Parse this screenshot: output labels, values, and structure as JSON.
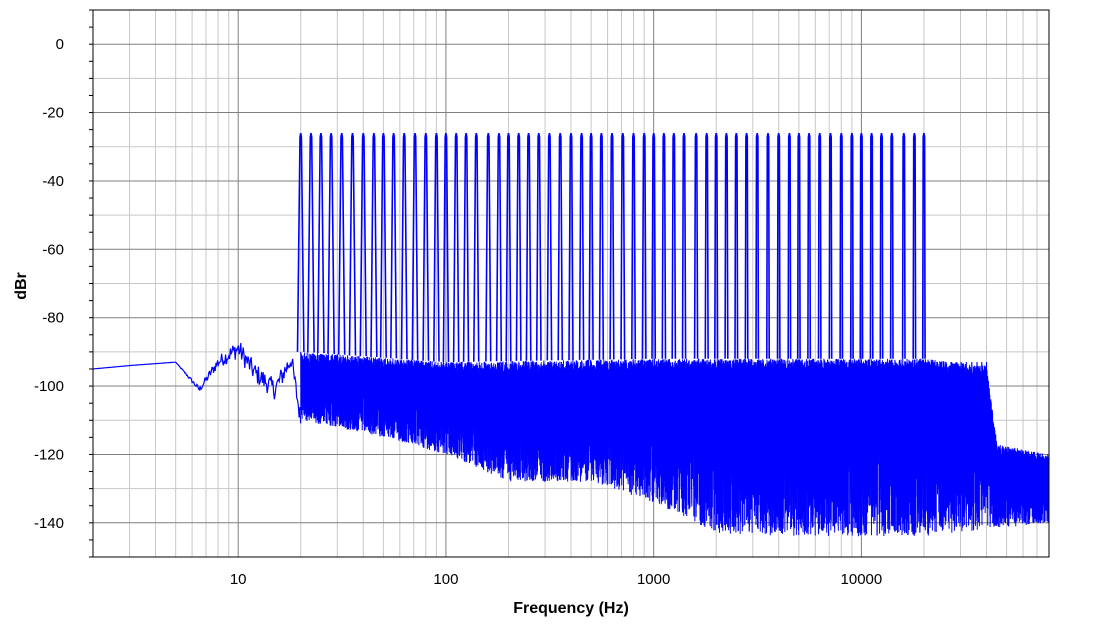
{
  "chart_data": {
    "type": "line",
    "title": "",
    "xlabel": "Frequency (Hz)",
    "ylabel": "dBr",
    "x_scale": "log",
    "xlim": [
      2,
      80000
    ],
    "ylim": [
      -150,
      10
    ],
    "x_ticks": [
      10,
      100,
      1000,
      10000
    ],
    "x_tick_labels": [
      "10",
      "100",
      "1000",
      "10000"
    ],
    "y_ticks": [
      0,
      -20,
      -40,
      -60,
      -80,
      -100,
      -120,
      -140
    ],
    "y_tick_labels": [
      "0",
      "-20",
      "-40",
      "-60",
      "-80",
      "-100",
      "-120",
      "-140"
    ],
    "grid": true,
    "series": [
      {
        "color": "#0000ff",
        "tone_peak_db": -26,
        "tone_frequencies_hz": [
          20,
          22.4,
          25,
          28,
          31.5,
          35.5,
          40,
          45,
          50,
          56,
          63,
          71,
          80,
          90,
          100,
          112,
          125,
          140,
          160,
          180,
          200,
          224,
          250,
          280,
          315,
          355,
          400,
          450,
          500,
          560,
          630,
          710,
          800,
          900,
          1000,
          1120,
          1250,
          1400,
          1600,
          1800,
          2000,
          2240,
          2500,
          2800,
          3150,
          3550,
          4000,
          4500,
          5000,
          5600,
          6300,
          7100,
          8000,
          9000,
          10000,
          11200,
          12500,
          14000,
          16000,
          18000,
          20000
        ],
        "noise_floor": [
          {
            "x": 2,
            "y": -95
          },
          {
            "x": 3,
            "y": -94
          },
          {
            "x": 5,
            "y": -93
          },
          {
            "x": 6.5,
            "y": -101
          },
          {
            "x": 8,
            "y": -93
          },
          {
            "x": 10,
            "y": -89
          },
          {
            "x": 12,
            "y": -96
          },
          {
            "x": 15,
            "y": -101
          },
          {
            "x": 18,
            "y": -92
          },
          {
            "x": 20,
            "y": -110
          },
          {
            "x": 50,
            "y": -115
          },
          {
            "x": 100,
            "y": -120
          },
          {
            "x": 200,
            "y": -128
          },
          {
            "x": 500,
            "y": -128
          },
          {
            "x": 1000,
            "y": -134
          },
          {
            "x": 2000,
            "y": -143
          },
          {
            "x": 5000,
            "y": -144
          },
          {
            "x": 10000,
            "y": -144
          },
          {
            "x": 20000,
            "y": -144
          },
          {
            "x": 40000,
            "y": -142
          },
          {
            "x": 80000,
            "y": -140
          }
        ],
        "noise_ceiling": [
          {
            "x": 20,
            "y": -90
          },
          {
            "x": 100,
            "y": -93
          },
          {
            "x": 1000,
            "y": -92
          },
          {
            "x": 10000,
            "y": -92
          },
          {
            "x": 20000,
            "y": -92
          },
          {
            "x": 40000,
            "y": -94
          },
          {
            "x": 45000,
            "y": -117
          },
          {
            "x": 80000,
            "y": -120
          }
        ]
      }
    ]
  }
}
